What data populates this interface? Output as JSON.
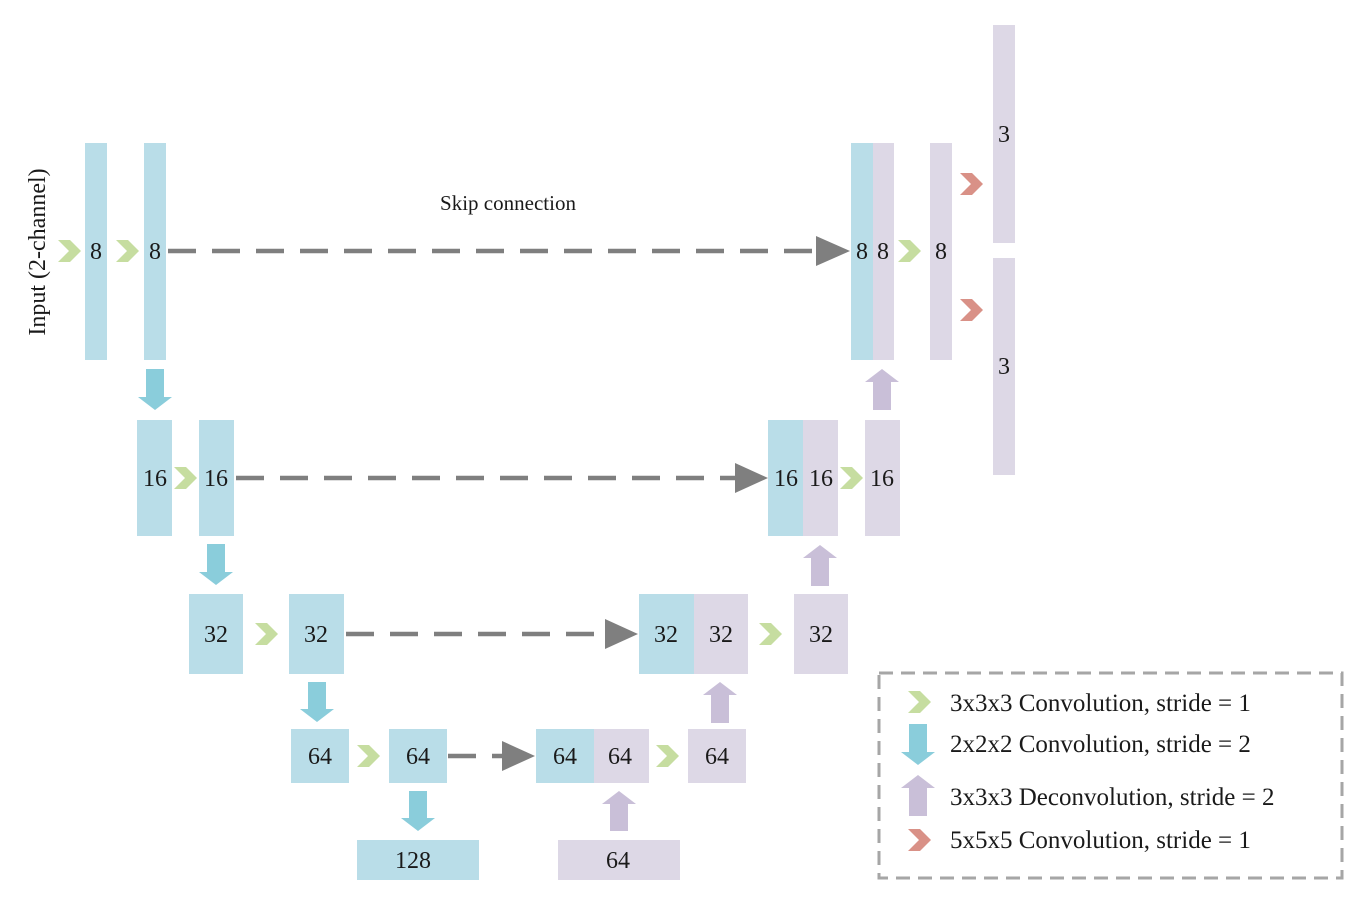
{
  "colors": {
    "encoder": "#b9dde8",
    "decoder": "#ddd8e6",
    "conv3": "#c6dda0",
    "down": "#8acddb",
    "deconv": "#c9bfd8",
    "conv5": "#d99187",
    "skip": "#7f7f7f",
    "legend_border": "#a6a6a6"
  },
  "input_label": "Input (2-channel)",
  "skip_label": "Skip connection",
  "blocks": {
    "e1a": "8",
    "e1b": "8",
    "d1a": "8",
    "d1b": "8",
    "d1c": "8",
    "out1": "3",
    "out2": "3",
    "e2a": "16",
    "e2b": "16",
    "d2a": "16",
    "d2b": "16",
    "d2c": "16",
    "e3a": "32",
    "e3b": "32",
    "d3a": "32",
    "d3b": "32",
    "d3c": "32",
    "e4a": "64",
    "e4b": "64",
    "d4a": "64",
    "d4b": "64",
    "d4c": "64",
    "bottom_enc": "128",
    "bottom_dec": "64"
  },
  "legend": {
    "conv3": "3x3x3 Convolution, stride = 1",
    "down": "2x2x2 Convolution, stride = 2",
    "deconv": "3x3x3 Deconvolution, stride = 2",
    "conv5": "5x5x5 Convolution, stride = 1"
  }
}
